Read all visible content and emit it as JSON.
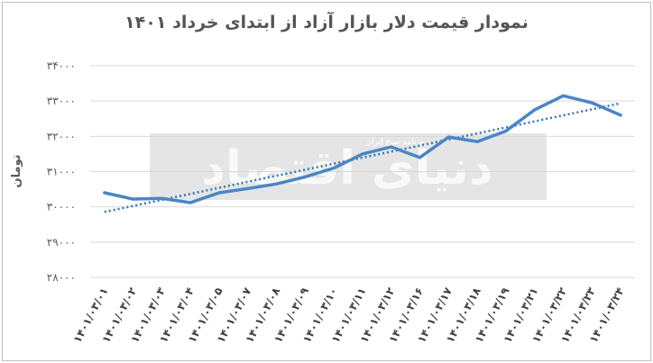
{
  "chart_data": {
    "type": "line",
    "title": "نمودار قیمت دلار بازار آزاد از ابتدای خرداد ۱۴۰۱",
    "ylabel": "تومان",
    "xlabel": "",
    "ylim": [
      28000,
      34000
    ],
    "yticks": [
      "۲۸۰۰۰",
      "۲۹۰۰۰",
      "۳۰۰۰۰",
      "۳۱۰۰۰",
      "۳۲۰۰۰",
      "۳۳۰۰۰",
      "۳۴۰۰۰"
    ],
    "ytick_values": [
      28000,
      29000,
      30000,
      31000,
      32000,
      33000,
      34000
    ],
    "categories": [
      "۱۴۰۱/۰۳/۰۱",
      "۱۴۰۱/۰۳/۰۲",
      "۱۴۰۱/۰۳/۰۳",
      "۱۴۰۱/۰۳/۰۴",
      "۱۴۰۱/۰۳/۰۵",
      "۱۴۰۱/۰۳/۰۷",
      "۱۴۰۱/۰۳/۰۸",
      "۱۴۰۱/۰۳/۰۹",
      "۱۴۰۱/۰۳/۱۰",
      "۱۴۰۱/۰۳/۱۱",
      "۱۴۰۱/۰۳/۱۲",
      "۱۴۰۱/۰۳/۱۶",
      "۱۴۰۱/۰۳/۱۷",
      "۱۴۰۱/۰۳/۱۸",
      "۱۴۰۱/۰۳/۱۹",
      "۱۴۰۱/۰۳/۲۱",
      "۱۴۰۱/۰۳/۲۲",
      "۱۴۰۱/۰۳/۲۳",
      "۱۴۰۱/۰۳/۲۴"
    ],
    "series": [
      {
        "values": [
          30400,
          30220,
          30240,
          30120,
          30400,
          30520,
          30650,
          30850,
          31100,
          31500,
          31700,
          31400,
          31980,
          31850,
          32150,
          32750,
          33150,
          32950,
          32600
        ],
        "color": "#4a86c5"
      }
    ],
    "trendline": {
      "style": "dotted",
      "color": "#2e75b6"
    },
    "grid": true,
    "legend": "none"
  },
  "watermark": {
    "text": "دنیای اقتصاد",
    "subtext": "روزنامه صبح ایران"
  }
}
